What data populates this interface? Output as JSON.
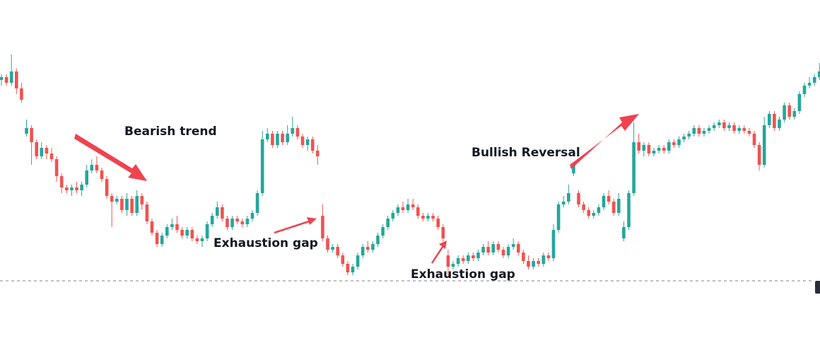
{
  "chart_data": {
    "type": "candlestick",
    "title": "",
    "xlabel": "",
    "ylabel": "",
    "ylim": [
      0,
      100
    ],
    "colors": {
      "up": "#26a69a",
      "down": "#ef5350",
      "arrow": "#ef4350",
      "reference_line": "#808080"
    },
    "reference_line_value": 12,
    "candles": [
      [
        83,
        84,
        85,
        81
      ],
      [
        84,
        82,
        85,
        81
      ],
      [
        82,
        86,
        92,
        81
      ],
      [
        86,
        80,
        87,
        78
      ],
      [
        80,
        76,
        82,
        75
      ],
      [
        64,
        66,
        69,
        63
      ],
      [
        66,
        61,
        67,
        53
      ],
      [
        61,
        56,
        62,
        55
      ],
      [
        56,
        59,
        61,
        55
      ],
      [
        59,
        57,
        60,
        55
      ],
      [
        57,
        55,
        59,
        54
      ],
      [
        55,
        49,
        56,
        47
      ],
      [
        49,
        45,
        50,
        43
      ],
      [
        45,
        44,
        46,
        43
      ],
      [
        44,
        45,
        46,
        42
      ],
      [
        45,
        44,
        47,
        43
      ],
      [
        44,
        46,
        47,
        42
      ],
      [
        46,
        51,
        53,
        45
      ],
      [
        51,
        53,
        55,
        50
      ],
      [
        53,
        51,
        56,
        50
      ],
      [
        51,
        48,
        52,
        47
      ],
      [
        48,
        42,
        49,
        41
      ],
      [
        42,
        40,
        43,
        31
      ],
      [
        40,
        41,
        42,
        39
      ],
      [
        41,
        37,
        42,
        36
      ],
      [
        37,
        41,
        43,
        35
      ],
      [
        41,
        36,
        42,
        35
      ],
      [
        36,
        42,
        44,
        35
      ],
      [
        42,
        39,
        43,
        37
      ],
      [
        39,
        33,
        40,
        32
      ],
      [
        33,
        29,
        34,
        28
      ],
      [
        29,
        25,
        30,
        24
      ],
      [
        25,
        28,
        29,
        24
      ],
      [
        28,
        31,
        32,
        27
      ],
      [
        31,
        32,
        34,
        30
      ],
      [
        32,
        30,
        35,
        29
      ],
      [
        30,
        28,
        31,
        27
      ],
      [
        28,
        30,
        31,
        27
      ],
      [
        30,
        27,
        31,
        26
      ],
      [
        27,
        26,
        28,
        25
      ],
      [
        26,
        27,
        28,
        24
      ],
      [
        27,
        32,
        33,
        26
      ],
      [
        32,
        35,
        36,
        31
      ],
      [
        35,
        38,
        40,
        34
      ],
      [
        38,
        34,
        39,
        33
      ],
      [
        34,
        31,
        35,
        30
      ],
      [
        31,
        34,
        35,
        30
      ],
      [
        34,
        33,
        35,
        32
      ],
      [
        33,
        32,
        34,
        31
      ],
      [
        32,
        34,
        35,
        31
      ],
      [
        34,
        36,
        37,
        33
      ],
      [
        36,
        43,
        44,
        35
      ],
      [
        43,
        62,
        65,
        42
      ],
      [
        62,
        64,
        66,
        61
      ],
      [
        64,
        60,
        65,
        59
      ],
      [
        60,
        64,
        65,
        59
      ],
      [
        64,
        61,
        65,
        60
      ],
      [
        61,
        64,
        67,
        60
      ],
      [
        64,
        66,
        70,
        63
      ],
      [
        66,
        63,
        67,
        62
      ],
      [
        63,
        60,
        64,
        59
      ],
      [
        60,
        62,
        63,
        58
      ],
      [
        62,
        58,
        63,
        57
      ],
      [
        58,
        56,
        60,
        53
      ],
      [
        35,
        27,
        39,
        26
      ],
      [
        27,
        23,
        28,
        22
      ],
      [
        23,
        24,
        25,
        22
      ],
      [
        24,
        21,
        25,
        20
      ],
      [
        21,
        18,
        22,
        17
      ],
      [
        18,
        15,
        19,
        14
      ],
      [
        15,
        17,
        18,
        14
      ],
      [
        17,
        21,
        22,
        16
      ],
      [
        21,
        24,
        25,
        20
      ],
      [
        24,
        23,
        26,
        22
      ],
      [
        23,
        25,
        26,
        22
      ],
      [
        25,
        28,
        29,
        24
      ],
      [
        28,
        31,
        32,
        27
      ],
      [
        31,
        34,
        35,
        30
      ],
      [
        34,
        36,
        37,
        33
      ],
      [
        36,
        38,
        39,
        35
      ],
      [
        38,
        37,
        40,
        36
      ],
      [
        37,
        39,
        41,
        36
      ],
      [
        39,
        38,
        41,
        37
      ],
      [
        38,
        35,
        39,
        34
      ],
      [
        35,
        34,
        36,
        33
      ],
      [
        34,
        35,
        36,
        33
      ],
      [
        35,
        34,
        36,
        33
      ],
      [
        34,
        31,
        35,
        30
      ],
      [
        31,
        27,
        32,
        26
      ],
      [
        21,
        17,
        23,
        14
      ],
      [
        17,
        18,
        19,
        16
      ],
      [
        18,
        20,
        21,
        17
      ],
      [
        20,
        19,
        21,
        18
      ],
      [
        19,
        21,
        22,
        18
      ],
      [
        21,
        20,
        22,
        19
      ],
      [
        20,
        22,
        23,
        19
      ],
      [
        22,
        24,
        25,
        21
      ],
      [
        24,
        22,
        26,
        21
      ],
      [
        22,
        25,
        26,
        21
      ],
      [
        25,
        23,
        26,
        22
      ],
      [
        23,
        21,
        24,
        20
      ],
      [
        21,
        24,
        25,
        20
      ],
      [
        24,
        25,
        27,
        23
      ],
      [
        25,
        22,
        26,
        21
      ],
      [
        22,
        19,
        23,
        18
      ],
      [
        19,
        17,
        21,
        16
      ],
      [
        17,
        19,
        20,
        16
      ],
      [
        19,
        18,
        20,
        17
      ],
      [
        18,
        21,
        22,
        17
      ],
      [
        21,
        20,
        22,
        19
      ],
      [
        20,
        30,
        32,
        19
      ],
      [
        30,
        39,
        40,
        29
      ],
      [
        39,
        40,
        42,
        38
      ],
      [
        40,
        43,
        46,
        39
      ],
      [
        50,
        53,
        54,
        49
      ],
      [
        43,
        39,
        44,
        38
      ],
      [
        39,
        37,
        40,
        36
      ],
      [
        37,
        35,
        38,
        34
      ],
      [
        35,
        36,
        37,
        34
      ],
      [
        36,
        38,
        39,
        35
      ],
      [
        38,
        42,
        43,
        37
      ],
      [
        42,
        40,
        44,
        39
      ],
      [
        40,
        36,
        41,
        35
      ],
      [
        36,
        41,
        43,
        35
      ],
      [
        27,
        31,
        33,
        26
      ],
      [
        31,
        43,
        44,
        30
      ],
      [
        43,
        61,
        68,
        42
      ],
      [
        61,
        58,
        64,
        57
      ],
      [
        58,
        60,
        61,
        56
      ],
      [
        60,
        57,
        61,
        56
      ],
      [
        57,
        58,
        59,
        56
      ],
      [
        58,
        59,
        60,
        57
      ],
      [
        59,
        58,
        60,
        57
      ],
      [
        58,
        61,
        62,
        57
      ],
      [
        61,
        60,
        62,
        59
      ],
      [
        60,
        62,
        63,
        59
      ],
      [
        62,
        63,
        64,
        61
      ],
      [
        63,
        64,
        65,
        62
      ],
      [
        64,
        66,
        67,
        63
      ],
      [
        66,
        64,
        67,
        63
      ],
      [
        64,
        65,
        66,
        63
      ],
      [
        65,
        66,
        67,
        64
      ],
      [
        66,
        67,
        68,
        65
      ],
      [
        67,
        68,
        69,
        66
      ],
      [
        68,
        66,
        69,
        65
      ],
      [
        66,
        67,
        68,
        65
      ],
      [
        67,
        65,
        68,
        64
      ],
      [
        65,
        66,
        67,
        64
      ],
      [
        66,
        65,
        67,
        64
      ],
      [
        65,
        64,
        66,
        63
      ],
      [
        64,
        60,
        65,
        59
      ],
      [
        60,
        53,
        61,
        51
      ],
      [
        53,
        67,
        70,
        52
      ],
      [
        67,
        71,
        72,
        66
      ],
      [
        71,
        66,
        72,
        65
      ],
      [
        66,
        69,
        70,
        65
      ],
      [
        69,
        74,
        75,
        68
      ],
      [
        74,
        70,
        75,
        69
      ],
      [
        70,
        72,
        73,
        69
      ],
      [
        72,
        78,
        79,
        71
      ],
      [
        78,
        81,
        82,
        77
      ],
      [
        81,
        82,
        84,
        80
      ],
      [
        82,
        84,
        85,
        81
      ],
      [
        84,
        86,
        89,
        83
      ],
      [
        86,
        82,
        87,
        81
      ],
      [
        82,
        80,
        83,
        79
      ],
      [
        80,
        77,
        81,
        76
      ],
      [
        77,
        78,
        79,
        76
      ],
      [
        78,
        76,
        79,
        75
      ],
      [
        76,
        75,
        77,
        74
      ]
    ],
    "annotations": [
      {
        "text": "Bearish trend"
      },
      {
        "text": "Exhaustion gap"
      },
      {
        "text": "Exhaustion gap"
      },
      {
        "text": "Bullish Reversal"
      }
    ]
  }
}
